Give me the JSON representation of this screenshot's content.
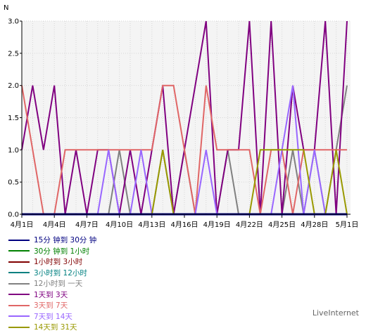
{
  "chart_data": {
    "type": "line",
    "ylabel": "N",
    "ylim": [
      0,
      3.0
    ],
    "y_ticks": [
      "0.0",
      "0.5",
      "1.0",
      "1.5",
      "2.0",
      "2.5",
      "3.0"
    ],
    "x_tick_labels": [
      "4月1日",
      "4月4日",
      "4月7日",
      "4月10日",
      "4月13日",
      "4月16日",
      "4月19日",
      "4月22日",
      "4月25日",
      "4月28日",
      "5月1日"
    ],
    "x_count": 31,
    "grid": true,
    "legend_position": "bottom",
    "series": [
      {
        "name": "15分 钟到 30分 钟",
        "color": "#000080",
        "values": [
          0,
          0,
          0,
          0,
          0,
          0,
          0,
          0,
          0,
          0,
          0,
          0,
          0,
          0,
          0,
          0,
          0,
          0,
          0,
          0,
          0,
          0,
          0,
          0,
          0,
          0,
          0,
          0,
          0,
          0,
          0
        ]
      },
      {
        "name": "30分 钟到 1小时",
        "color": "#008000",
        "values": [
          0,
          0,
          0,
          0,
          0,
          0,
          0,
          0,
          0,
          0,
          0,
          0,
          0,
          0,
          0,
          0,
          0,
          0,
          0,
          0,
          0,
          0,
          0,
          0,
          0,
          0,
          0,
          0,
          0,
          0,
          0
        ]
      },
      {
        "name": "1小时到 3小时",
        "color": "#800000",
        "values": [
          0,
          0,
          0,
          0,
          0,
          0,
          0,
          0,
          0,
          0,
          0,
          0,
          0,
          0,
          0,
          0,
          0,
          0,
          0,
          0,
          0,
          0,
          0,
          0,
          0,
          0,
          0,
          0,
          0,
          0,
          0
        ]
      },
      {
        "name": "3小时到 12小时",
        "color": "#008080",
        "values": [
          0,
          0,
          0,
          0,
          0,
          0,
          0,
          0,
          0,
          0,
          0,
          0,
          0,
          0,
          0,
          0,
          0,
          0,
          0,
          0,
          0,
          0,
          0,
          0,
          0,
          0,
          0,
          0,
          0,
          0,
          0
        ]
      },
      {
        "name": "12小时到 一天",
        "color": "#808080",
        "values": [
          0,
          0,
          0,
          0,
          0,
          0,
          0,
          0,
          0,
          1,
          0,
          0,
          0,
          1,
          0,
          1,
          0,
          0,
          0,
          1,
          0,
          0,
          0,
          0,
          0,
          1,
          0,
          1,
          0,
          1,
          2
        ]
      },
      {
        "name": "1天到 3天",
        "color": "#800080",
        "values": [
          1,
          2,
          1,
          2,
          0,
          1,
          0,
          1,
          1,
          0,
          1,
          0,
          1,
          2,
          0,
          1,
          2,
          3,
          0,
          1,
          1,
          3,
          0,
          3,
          0,
          2,
          1,
          1,
          3,
          0,
          3
        ]
      },
      {
        "name": "3天到 7天",
        "color": "#e06666",
        "values": [
          2,
          1,
          0,
          0,
          1,
          1,
          1,
          1,
          1,
          1,
          1,
          1,
          1,
          2,
          2,
          1,
          0,
          2,
          1,
          1,
          1,
          1,
          0,
          1,
          1,
          0,
          1,
          1,
          1,
          1,
          1
        ]
      },
      {
        "name": "7天到 14天",
        "color": "#9966ff",
        "values": [
          0,
          0,
          0,
          0,
          0,
          0,
          0,
          0,
          1,
          0,
          0,
          1,
          0,
          0,
          0,
          0,
          0,
          1,
          0,
          0,
          0,
          0,
          0,
          0,
          1,
          2,
          0,
          1,
          0,
          0,
          0
        ]
      },
      {
        "name": "14天到 31天",
        "color": "#999900",
        "values": [
          0,
          0,
          0,
          0,
          0,
          0,
          0,
          0,
          0,
          0,
          0,
          0,
          0,
          1,
          0,
          0,
          0,
          0,
          0,
          0,
          0,
          0,
          1,
          1,
          1,
          1,
          1,
          0,
          0,
          1,
          0
        ]
      }
    ]
  },
  "branding": {
    "text": "LiveInternet"
  }
}
